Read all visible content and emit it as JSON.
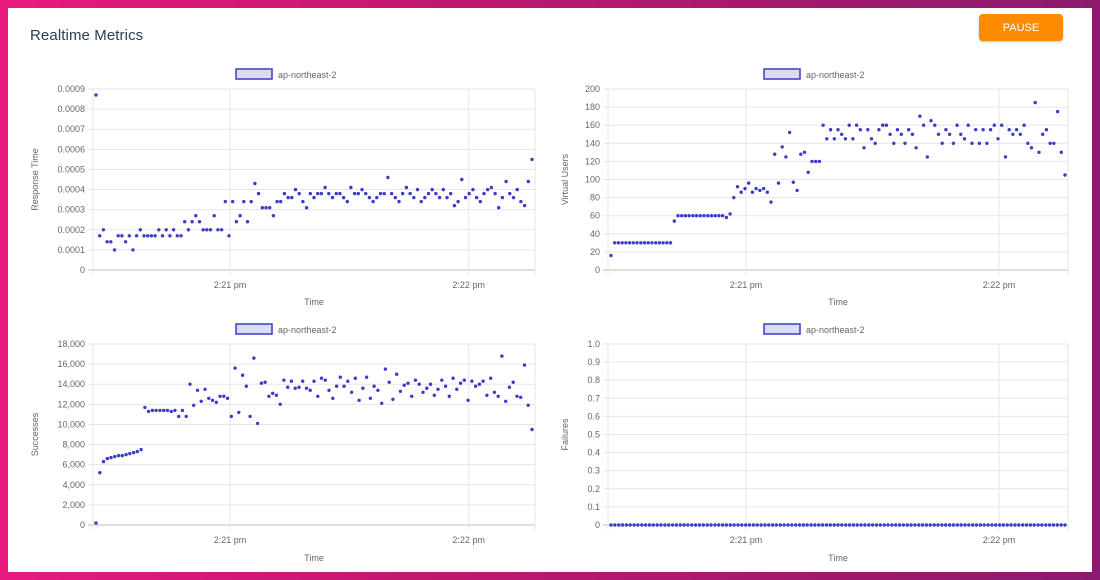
{
  "header": {
    "title": "Realtime Metrics",
    "pause_label": "PAUSE"
  },
  "colors": {
    "series": "#3c3cc8",
    "legend_fill": "#dcdcf0",
    "grid": "#e6e6e6",
    "pause": "#fb8c00"
  },
  "chart_data": [
    {
      "type": "scatter",
      "xlabel": "Time",
      "ylabel": "Response Time",
      "legend": [
        "ap-northeast-2"
      ],
      "legend_position": "top",
      "x_ticks": [
        "2:21 pm",
        "2:22 pm"
      ],
      "y_ticks": [
        "0",
        "0.0001",
        "0.0002",
        "0.0003",
        "0.0004",
        "0.0005",
        "0.0006",
        "0.0007",
        "0.0008",
        "0.0009"
      ],
      "ylim": [
        0,
        0.0009
      ],
      "series": [
        {
          "name": "ap-northeast-2",
          "values": [
            0.00087,
            0.00017,
            0.0002,
            0.00014,
            0.00014,
            0.0001,
            0.00017,
            0.00017,
            0.00014,
            0.00017,
            0.0001,
            0.00017,
            0.0002,
            0.00017,
            0.00017,
            0.00017,
            0.00017,
            0.0002,
            0.00017,
            0.0002,
            0.00017,
            0.0002,
            0.00017,
            0.00017,
            0.00024,
            0.0002,
            0.00024,
            0.00027,
            0.00024,
            0.0002,
            0.0002,
            0.0002,
            0.00027,
            0.0002,
            0.0002,
            0.00034,
            0.00017,
            0.00034,
            0.00024,
            0.00027,
            0.00034,
            0.00024,
            0.00034,
            0.00043,
            0.00038,
            0.00031,
            0.00031,
            0.00031,
            0.00027,
            0.00034,
            0.00034,
            0.00038,
            0.00036,
            0.00036,
            0.0004,
            0.00038,
            0.00034,
            0.00031,
            0.00038,
            0.00036,
            0.00038,
            0.00038,
            0.00041,
            0.00038,
            0.00036,
            0.00038,
            0.00038,
            0.00036,
            0.00034,
            0.00041,
            0.00038,
            0.00038,
            0.0004,
            0.00038,
            0.00036,
            0.00034,
            0.00036,
            0.00038,
            0.00038,
            0.00046,
            0.00038,
            0.00036,
            0.00034,
            0.00038,
            0.00041,
            0.00038,
            0.00036,
            0.0004,
            0.00034,
            0.00036,
            0.00038,
            0.0004,
            0.00038,
            0.00036,
            0.0004,
            0.00036,
            0.00038,
            0.00032,
            0.00034,
            0.00045,
            0.00036,
            0.00038,
            0.0004,
            0.00036,
            0.00034,
            0.00038,
            0.0004,
            0.00041,
            0.00038,
            0.00031,
            0.00036,
            0.00044,
            0.00038,
            0.00036,
            0.0004,
            0.00034,
            0.00032,
            0.00044,
            0.00055
          ]
        }
      ]
    },
    {
      "type": "scatter",
      "xlabel": "Time",
      "ylabel": "Virtual Users",
      "legend": [
        "ap-northeast-2"
      ],
      "legend_position": "top",
      "x_ticks": [
        "2:21 pm",
        "2:22 pm"
      ],
      "y_ticks": [
        "0",
        "20",
        "40",
        "60",
        "80",
        "100",
        "120",
        "140",
        "160",
        "180",
        "200"
      ],
      "ylim": [
        0,
        200
      ],
      "series": [
        {
          "name": "ap-northeast-2",
          "values": [
            16,
            30,
            30,
            30,
            30,
            30,
            30,
            30,
            30,
            30,
            30,
            30,
            30,
            30,
            30,
            30,
            30,
            54,
            60,
            60,
            60,
            60,
            60,
            60,
            60,
            60,
            60,
            60,
            60,
            60,
            60,
            58,
            62,
            80,
            92,
            86,
            90,
            96,
            86,
            90,
            88,
            90,
            86,
            75,
            128,
            96,
            136,
            125,
            152,
            97,
            88,
            128,
            130,
            108,
            120,
            120,
            120,
            160,
            145,
            155,
            145,
            155,
            150,
            145,
            160,
            145,
            160,
            155,
            135,
            155,
            145,
            140,
            155,
            160,
            160,
            150,
            140,
            155,
            150,
            140,
            155,
            150,
            135,
            170,
            160,
            125,
            165,
            160,
            150,
            140,
            155,
            150,
            140,
            160,
            150,
            145,
            160,
            140,
            155,
            140,
            155,
            140,
            155,
            160,
            145,
            160,
            125,
            155,
            150,
            155,
            150,
            160,
            140,
            135,
            185,
            130,
            150,
            155,
            140,
            140,
            175,
            130,
            105
          ]
        }
      ]
    },
    {
      "type": "scatter",
      "xlabel": "Time",
      "ylabel": "Successes",
      "legend": [
        "ap-northeast-2"
      ],
      "legend_position": "top",
      "x_ticks": [
        "2:21 pm",
        "2:22 pm"
      ],
      "y_ticks": [
        "0",
        "2,000",
        "4,000",
        "6,000",
        "8,000",
        "10,000",
        "12,000",
        "14,000",
        "16,000",
        "18,000"
      ],
      "ylim": [
        0,
        18000
      ],
      "series": [
        {
          "name": "ap-northeast-2",
          "values": [
            200,
            5200,
            6300,
            6600,
            6700,
            6800,
            6900,
            6900,
            7000,
            7100,
            7200,
            7300,
            7500,
            11700,
            11300,
            11400,
            11400,
            11400,
            11400,
            11400,
            11300,
            11400,
            10800,
            11400,
            10800,
            14000,
            11900,
            13400,
            12300,
            13500,
            12600,
            12400,
            12200,
            12800,
            12800,
            12600,
            10800,
            15600,
            11200,
            14900,
            13800,
            10800,
            16600,
            10100,
            14100,
            14200,
            12800,
            13100,
            12900,
            12000,
            14400,
            13700,
            14300,
            13600,
            13700,
            14300,
            13600,
            13400,
            14300,
            12800,
            14600,
            14400,
            13400,
            12600,
            13800,
            14700,
            13800,
            14300,
            13200,
            14600,
            12400,
            13600,
            14700,
            12600,
            13800,
            13400,
            12100,
            15500,
            14200,
            12500,
            15000,
            13300,
            13900,
            14100,
            12800,
            14400,
            14000,
            13200,
            13600,
            14000,
            12900,
            13500,
            14400,
            13800,
            12800,
            14600,
            13500,
            14100,
            14400,
            12400,
            14300,
            13800,
            14000,
            14300,
            12900,
            14600,
            13200,
            12800,
            16800,
            12300,
            13700,
            14200,
            12800,
            12700,
            15900,
            11900,
            9500
          ]
        }
      ]
    },
    {
      "type": "scatter",
      "xlabel": "Time",
      "ylabel": "Failures",
      "legend": [
        "ap-northeast-2"
      ],
      "legend_position": "top",
      "x_ticks": [
        "2:21 pm",
        "2:22 pm"
      ],
      "y_ticks": [
        "0",
        "0.1",
        "0.2",
        "0.3",
        "0.4",
        "0.5",
        "0.6",
        "0.7",
        "0.8",
        "0.9",
        "1.0"
      ],
      "ylim": [
        0,
        1
      ],
      "series": [
        {
          "name": "ap-northeast-2",
          "values": "all-zero"
        }
      ]
    }
  ]
}
